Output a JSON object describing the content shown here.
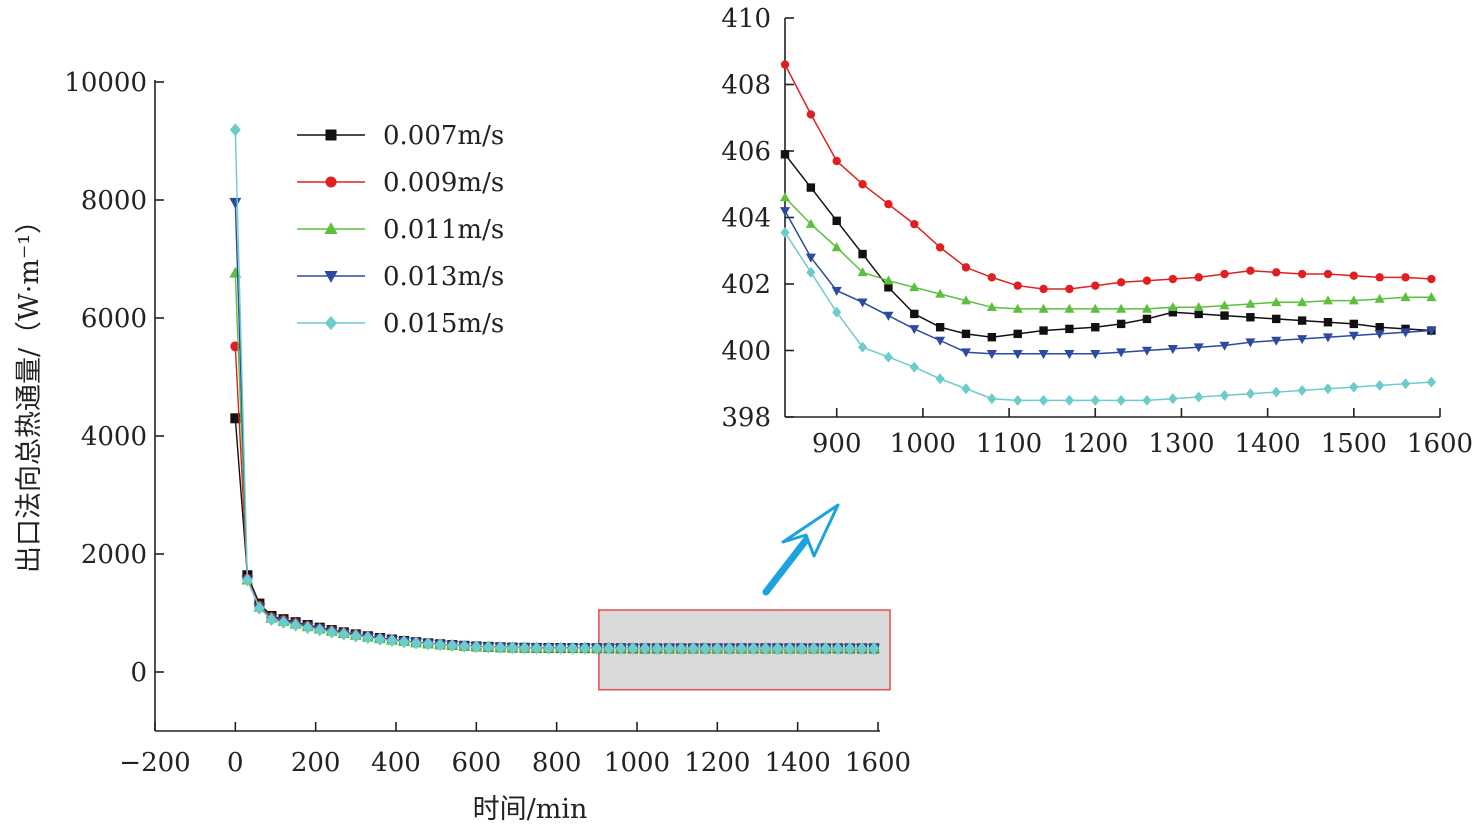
{
  "chart_data": [
    {
      "type": "line",
      "name": "main",
      "xlabel": "时间/min",
      "ylabel": "出口法向总热通量/（W·m⁻¹）",
      "xlim": [
        -200,
        1600
      ],
      "ylim": [
        -1000,
        10000
      ],
      "xticks": [
        -200,
        0,
        200,
        400,
        600,
        800,
        1000,
        1200,
        1400,
        1600
      ],
      "yticks": [
        0,
        2000,
        4000,
        6000,
        8000,
        10000
      ],
      "xtick_labels": [
        "−200",
        "0",
        "200",
        "400",
        "600",
        "800",
        "1000",
        "1200",
        "1400",
        "1600"
      ],
      "ytick_labels": [
        "0",
        "2000",
        "4000",
        "6000",
        "8000",
        "10000"
      ],
      "highlight_box": {
        "x_range": [
          905,
          1630
        ],
        "y_range": [
          -300,
          1050
        ],
        "fill": "#d9d9d9",
        "stroke": "#e05050"
      },
      "x": [
        0,
        30,
        60,
        90,
        120,
        150,
        180,
        210,
        240,
        270,
        300,
        330,
        360,
        390,
        420,
        450,
        480,
        510,
        540,
        570,
        600,
        630,
        660,
        690,
        720,
        750,
        780,
        810,
        840,
        870,
        900,
        930,
        960,
        990,
        1020,
        1050,
        1080,
        1110,
        1140,
        1170,
        1200,
        1230,
        1260,
        1290,
        1320,
        1350,
        1380,
        1410,
        1440,
        1470,
        1500,
        1530,
        1560,
        1590
      ],
      "start_values": {
        "0.007m/s": [
          4300,
          1640,
          1160,
          950
        ],
        "0.009m/s": [
          5520,
          1580,
          1120,
          930
        ],
        "0.011m/s": [
          6760,
          1560,
          1100,
          910
        ],
        "0.013m/s": [
          7960,
          1560,
          1090,
          900
        ],
        "0.015m/s": [
          9190,
          1560,
          1080,
          890
        ]
      },
      "legend_position": "top-left",
      "grid": false
    },
    {
      "type": "line",
      "name": "inset",
      "xlim": [
        840,
        1600
      ],
      "ylim": [
        398,
        410
      ],
      "xticks": [
        900,
        1000,
        1100,
        1200,
        1300,
        1400,
        1500,
        1600
      ],
      "yticks": [
        398,
        400,
        402,
        404,
        406,
        408,
        410
      ],
      "xtick_labels": [
        "900",
        "1000",
        "1100",
        "1200",
        "1300",
        "1400",
        "1500",
        "1600"
      ],
      "ytick_labels": [
        "398",
        "400",
        "402",
        "404",
        "406",
        "408",
        "410"
      ],
      "x": [
        840,
        870,
        900,
        930,
        960,
        990,
        1020,
        1050,
        1080,
        1110,
        1140,
        1170,
        1200,
        1230,
        1260,
        1290,
        1320,
        1350,
        1380,
        1410,
        1440,
        1470,
        1500,
        1530,
        1560,
        1590
      ],
      "series": [
        {
          "name": "0.007m/s",
          "color": "#111111",
          "marker": "square",
          "values": [
            405.9,
            404.9,
            403.9,
            402.9,
            401.9,
            401.1,
            400.7,
            400.5,
            400.4,
            400.5,
            400.6,
            400.65,
            400.7,
            400.8,
            400.95,
            401.15,
            401.1,
            401.05,
            401.0,
            400.95,
            400.9,
            400.85,
            400.8,
            400.7,
            400.65,
            400.6
          ]
        },
        {
          "name": "0.009m/s",
          "color": "#e02020",
          "marker": "circle",
          "values": [
            408.6,
            407.1,
            405.7,
            405.0,
            404.4,
            403.8,
            403.1,
            402.5,
            402.2,
            401.95,
            401.85,
            401.85,
            401.95,
            402.05,
            402.1,
            402.15,
            402.2,
            402.3,
            402.4,
            402.35,
            402.3,
            402.3,
            402.25,
            402.2,
            402.2,
            402.15
          ]
        },
        {
          "name": "0.011m/s",
          "color": "#5cc03c",
          "marker": "triangle-up",
          "values": [
            404.6,
            403.8,
            403.1,
            402.35,
            402.1,
            401.9,
            401.7,
            401.5,
            401.3,
            401.25,
            401.25,
            401.25,
            401.25,
            401.25,
            401.25,
            401.3,
            401.3,
            401.35,
            401.4,
            401.45,
            401.45,
            401.5,
            401.5,
            401.55,
            401.6,
            401.6
          ]
        },
        {
          "name": "0.013m/s",
          "color": "#2b4aa0",
          "marker": "triangle-down",
          "values": [
            404.2,
            402.8,
            401.8,
            401.45,
            401.05,
            400.65,
            400.3,
            399.95,
            399.9,
            399.9,
            399.9,
            399.9,
            399.9,
            399.95,
            400.0,
            400.05,
            400.1,
            400.15,
            400.25,
            400.3,
            400.35,
            400.4,
            400.45,
            400.5,
            400.55,
            400.6
          ]
        },
        {
          "name": "0.015m/s",
          "color": "#6ccccc",
          "marker": "diamond",
          "values": [
            403.55,
            402.35,
            401.15,
            400.1,
            399.8,
            399.5,
            399.15,
            398.85,
            398.55,
            398.5,
            398.5,
            398.5,
            398.5,
            398.5,
            398.5,
            398.55,
            398.6,
            398.65,
            398.7,
            398.75,
            398.8,
            398.85,
            398.9,
            398.95,
            399.0,
            399.05
          ]
        }
      ]
    }
  ],
  "arrow_color": "#1aa3e0"
}
